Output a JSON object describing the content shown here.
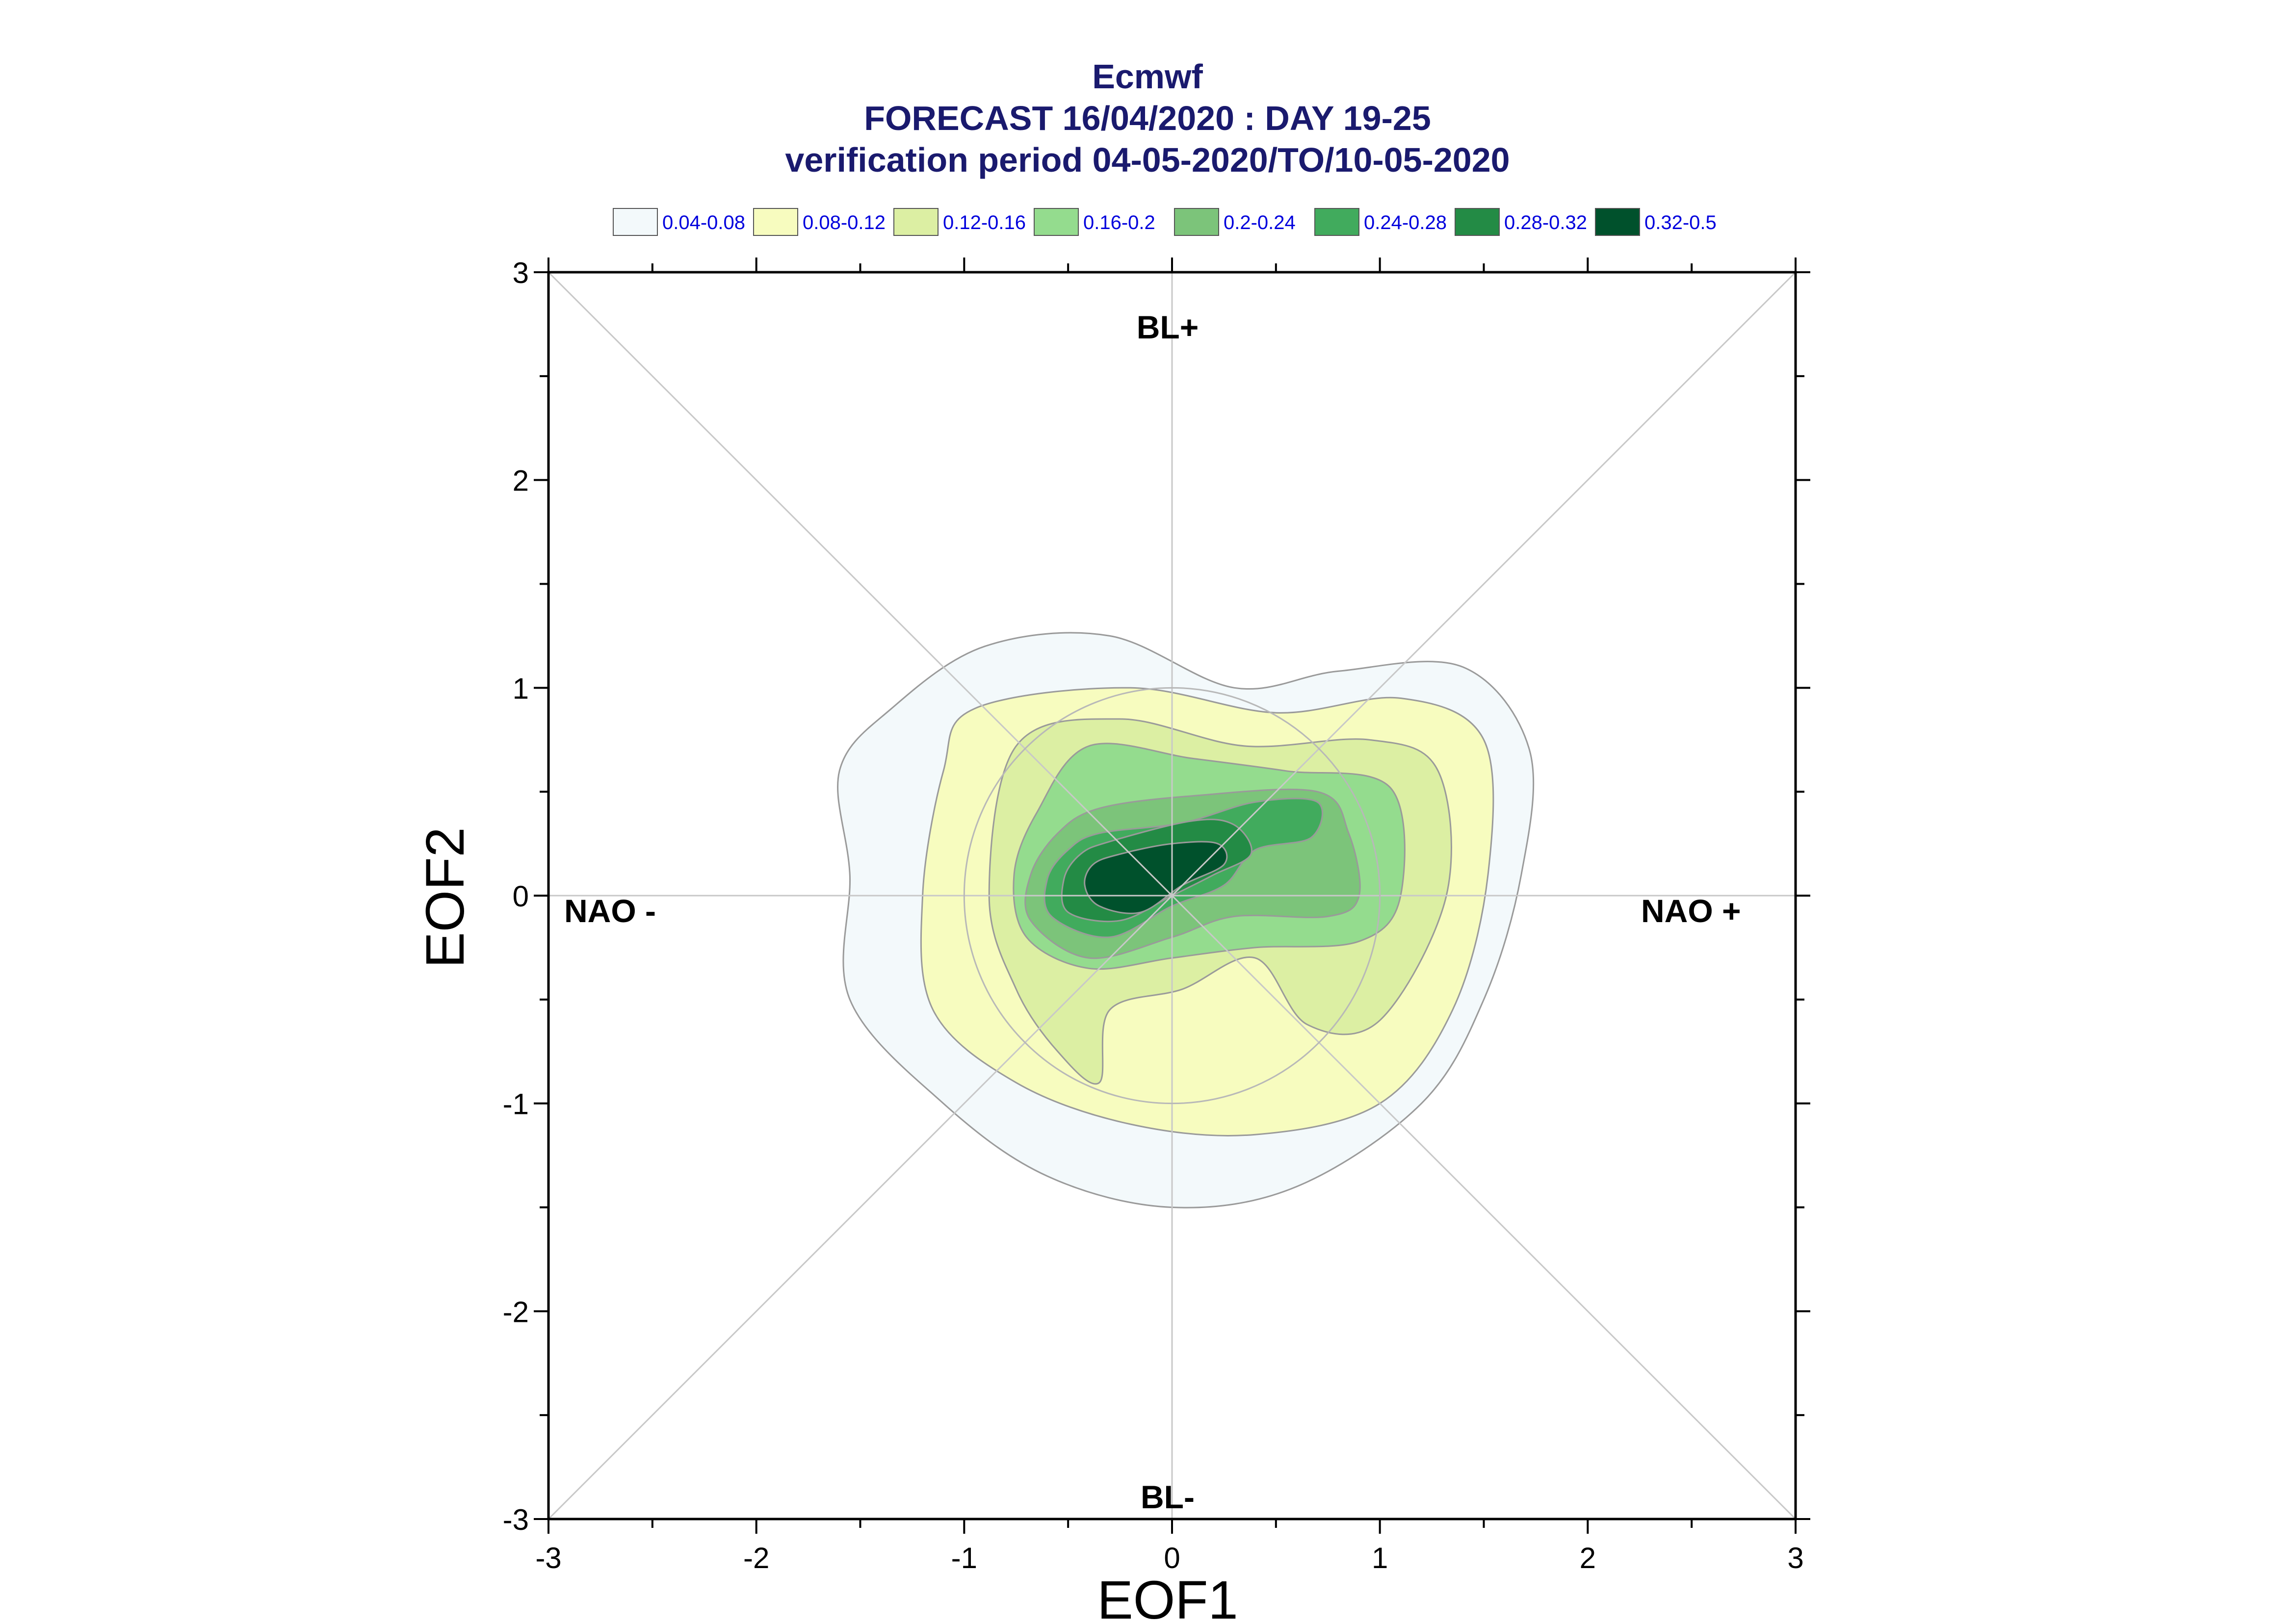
{
  "chart_data": {
    "type": "contour",
    "title": "Ecmwf",
    "subtitle_lines": [
      "FORECAST 16/04/2020 : DAY 19-25",
      "verification period 04-05-2020/TO/10-05-2020"
    ],
    "xlabel": "EOF1",
    "ylabel": "EOF2",
    "xlim": [
      -3,
      3
    ],
    "ylim": [
      -3,
      3
    ],
    "x_ticks": [
      "-3",
      "-2",
      "-1",
      "0",
      "1",
      "2",
      "3"
    ],
    "y_ticks": [
      "3",
      "2",
      "1",
      "0",
      "-1",
      "-2",
      "-3"
    ],
    "regime_labels": {
      "top": "BL+",
      "bottom": "BL-",
      "left": "NAO -",
      "right": "NAO +"
    },
    "legend": {
      "placement": "top",
      "entries": [
        {
          "label": "0.04-0.08",
          "color": "#f3f9fb"
        },
        {
          "label": "0.08-0.12",
          "color": "#f7fcbf"
        },
        {
          "label": "0.12-0.16",
          "color": "#dcefa3"
        },
        {
          "label": "0.16-0.2",
          "color": "#94dc8e"
        },
        {
          "label": "0.2-0.24",
          "color": "#7cc47a"
        },
        {
          "label": "0.24-0.28",
          "color": "#41ab5d"
        },
        {
          "label": "0.28-0.32",
          "color": "#238b45"
        },
        {
          "label": "0.32-0.5",
          "color": "#00512c"
        }
      ]
    },
    "contours": [
      {
        "level": "0.04-0.08",
        "color": "#f3f9fb",
        "points": [
          [
            -0.9,
            1.2
          ],
          [
            -0.3,
            1.25
          ],
          [
            0.3,
            1.0
          ],
          [
            0.8,
            1.08
          ],
          [
            1.4,
            1.1
          ],
          [
            1.72,
            0.7
          ],
          [
            1.68,
            0.1
          ],
          [
            1.5,
            -0.5
          ],
          [
            1.2,
            -1.0
          ],
          [
            0.6,
            -1.4
          ],
          [
            0,
            -1.5
          ],
          [
            -0.6,
            -1.35
          ],
          [
            -1.1,
            -1.0
          ],
          [
            -1.55,
            -0.5
          ],
          [
            -1.55,
            0.1
          ],
          [
            -1.6,
            0.6
          ],
          [
            -1.35,
            0.9
          ]
        ]
      },
      {
        "level": "0.08-0.12",
        "color": "#f7fcbf",
        "points": [
          [
            -0.95,
            0.9
          ],
          [
            -0.2,
            1.0
          ],
          [
            0.5,
            0.88
          ],
          [
            1.1,
            0.95
          ],
          [
            1.5,
            0.75
          ],
          [
            1.52,
            0.1
          ],
          [
            1.35,
            -0.55
          ],
          [
            1.0,
            -1.0
          ],
          [
            0.4,
            -1.15
          ],
          [
            -0.2,
            -1.1
          ],
          [
            -0.75,
            -0.9
          ],
          [
            -1.15,
            -0.55
          ],
          [
            -1.2,
            0.0
          ],
          [
            -1.1,
            0.6
          ]
        ]
      },
      {
        "level": "0.12-0.16",
        "color": "#dcefa3",
        "points": [
          [
            -0.75,
            0.72
          ],
          [
            -0.25,
            0.85
          ],
          [
            0.35,
            0.72
          ],
          [
            0.95,
            0.75
          ],
          [
            1.28,
            0.6
          ],
          [
            1.32,
            0.0
          ],
          [
            1.0,
            -0.6
          ],
          [
            0.65,
            -0.62
          ],
          [
            0.4,
            -0.3
          ],
          [
            0.05,
            -0.45
          ],
          [
            -0.3,
            -0.55
          ],
          [
            -0.35,
            -0.9
          ],
          [
            -0.55,
            -0.75
          ],
          [
            -0.75,
            -0.45
          ],
          [
            -0.88,
            0.0
          ]
        ]
      },
      {
        "level": "0.16-0.2",
        "color": "#94dc8e",
        "points": [
          [
            -0.4,
            0.72
          ],
          [
            0.1,
            0.66
          ],
          [
            0.55,
            0.6
          ],
          [
            1.05,
            0.52
          ],
          [
            1.1,
            0.0
          ],
          [
            0.9,
            -0.22
          ],
          [
            0.4,
            -0.25
          ],
          [
            0.0,
            -0.3
          ],
          [
            -0.4,
            -0.35
          ],
          [
            -0.7,
            -0.2
          ],
          [
            -0.76,
            0.1
          ],
          [
            -0.65,
            0.4
          ]
        ]
      },
      {
        "level": "0.2-0.24",
        "color": "#7cc47a",
        "points": [
          [
            -0.35,
            0.42
          ],
          [
            0.1,
            0.48
          ],
          [
            0.7,
            0.5
          ],
          [
            0.85,
            0.3
          ],
          [
            0.9,
            0.0
          ],
          [
            0.75,
            -0.1
          ],
          [
            0.3,
            -0.1
          ],
          [
            0.0,
            -0.2
          ],
          [
            -0.4,
            -0.3
          ],
          [
            -0.68,
            -0.12
          ],
          [
            -0.68,
            0.1
          ],
          [
            -0.55,
            0.3
          ]
        ]
      },
      {
        "level": "0.24-0.28",
        "color": "#41ab5d",
        "points": [
          [
            -0.35,
            0.3
          ],
          [
            0.05,
            0.35
          ],
          [
            0.4,
            0.45
          ],
          [
            0.7,
            0.45
          ],
          [
            0.67,
            0.28
          ],
          [
            0.4,
            0.22
          ],
          [
            0.25,
            0.05
          ],
          [
            0.0,
            -0.05
          ],
          [
            -0.3,
            -0.2
          ],
          [
            -0.58,
            -0.1
          ],
          [
            -0.6,
            0.08
          ],
          [
            -0.5,
            0.22
          ]
        ]
      },
      {
        "level": "0.28-0.32",
        "color": "#238b45",
        "points": [
          [
            -0.3,
            0.26
          ],
          [
            0.1,
            0.36
          ],
          [
            0.3,
            0.34
          ],
          [
            0.38,
            0.2
          ],
          [
            0.2,
            0.1
          ],
          [
            0.0,
            0.0
          ],
          [
            -0.25,
            -0.12
          ],
          [
            -0.5,
            -0.08
          ],
          [
            -0.52,
            0.08
          ],
          [
            -0.44,
            0.2
          ]
        ]
      },
      {
        "level": "0.32-0.5",
        "color": "#00512c",
        "points": [
          [
            -0.25,
            0.2
          ],
          [
            0.0,
            0.25
          ],
          [
            0.22,
            0.25
          ],
          [
            0.25,
            0.15
          ],
          [
            0.05,
            0.05
          ],
          [
            -0.15,
            -0.08
          ],
          [
            -0.35,
            -0.05
          ],
          [
            -0.42,
            0.05
          ],
          [
            -0.38,
            0.15
          ]
        ]
      }
    ]
  }
}
